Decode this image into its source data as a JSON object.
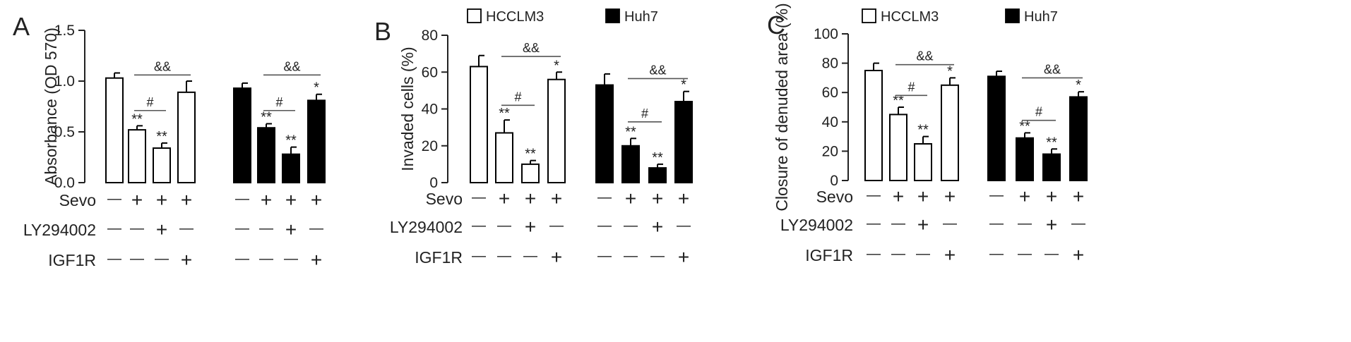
{
  "chart_data": [
    {
      "type": "bar",
      "panel_label": "A",
      "ylabel": "Absorbance (OD 570)",
      "ylim": [
        0,
        1.5
      ],
      "yticks": [
        "0.0",
        "0.5",
        "1.0",
        "1.5"
      ],
      "legend": [],
      "series": [
        {
          "name": "",
          "fill": "#ffffff",
          "values": [
            1.03,
            0.52,
            0.34,
            0.89
          ],
          "errors": [
            0.05,
            0.04,
            0.05,
            0.11
          ],
          "marks": [
            "",
            "**",
            "**",
            ""
          ]
        },
        {
          "name": "",
          "fill": "#000000",
          "values": [
            0.93,
            0.54,
            0.28,
            0.81
          ],
          "errors": [
            0.05,
            0.04,
            0.07,
            0.06
          ],
          "marks": [
            "",
            "**",
            "**",
            "*"
          ]
        }
      ],
      "brackets": [
        {
          "series": 0,
          "from": 1,
          "to": 2,
          "y": 0.71,
          "label": "#"
        },
        {
          "series": 0,
          "from": 1,
          "to": 3,
          "y": 1.06,
          "label": "&&"
        },
        {
          "series": 1,
          "from": 1,
          "to": 2,
          "y": 0.71,
          "label": "#"
        },
        {
          "series": 1,
          "from": 1,
          "to": 3,
          "y": 1.06,
          "label": "&&"
        }
      ],
      "treatments": [
        {
          "label": "Sevo",
          "signs": [
            "—",
            "+",
            "+",
            "+"
          ]
        },
        {
          "label": "LY294002",
          "signs": [
            "—",
            "—",
            "+",
            "—"
          ]
        },
        {
          "label": "IGF1R",
          "signs": [
            "—",
            "—",
            "—",
            "+"
          ]
        }
      ]
    },
    {
      "type": "bar",
      "panel_label": "B",
      "ylabel": "Invaded cells (%)",
      "ylim": [
        0,
        80
      ],
      "yticks": [
        "0",
        "20",
        "40",
        "60",
        "80"
      ],
      "legend": [
        "HCCLM3",
        "Huh7"
      ],
      "series": [
        {
          "name": "HCCLM3",
          "fill": "#ffffff",
          "values": [
            63,
            27,
            10,
            56
          ],
          "errors": [
            6,
            7,
            2,
            4
          ],
          "marks": [
            "",
            "**",
            "**",
            "*"
          ]
        },
        {
          "name": "Huh7",
          "fill": "#000000",
          "values": [
            53,
            20,
            8,
            44
          ],
          "errors": [
            6,
            4,
            2,
            5.5
          ],
          "marks": [
            "",
            "**",
            "**",
            "*"
          ]
        }
      ],
      "brackets": [
        {
          "series": 0,
          "from": 1,
          "to": 2,
          "y": 42,
          "label": "#"
        },
        {
          "series": 0,
          "from": 1,
          "to": 3,
          "y": 68.5,
          "label": "&&"
        },
        {
          "series": 1,
          "from": 1,
          "to": 2,
          "y": 33,
          "label": "#"
        },
        {
          "series": 1,
          "from": 1,
          "to": 3,
          "y": 56.5,
          "label": "&&"
        }
      ],
      "treatments": [
        {
          "label": "Sevo",
          "signs": [
            "—",
            "+",
            "+",
            "+"
          ]
        },
        {
          "label": "LY294002",
          "signs": [
            "—",
            "—",
            "+",
            "—"
          ]
        },
        {
          "label": "IGF1R",
          "signs": [
            "—",
            "—",
            "—",
            "+"
          ]
        }
      ]
    },
    {
      "type": "bar",
      "panel_label": "C",
      "ylabel": "Closure of denuded area (%)",
      "ylim": [
        0,
        100
      ],
      "yticks": [
        "0",
        "20",
        "40",
        "60",
        "80",
        "100"
      ],
      "legend": [
        "HCCLM3",
        "Huh7"
      ],
      "series": [
        {
          "name": "HCCLM3",
          "fill": "#ffffff",
          "values": [
            75,
            45,
            25,
            65
          ],
          "errors": [
            5,
            5,
            5,
            5
          ],
          "marks": [
            "",
            "**",
            "**",
            "*"
          ]
        },
        {
          "name": "Huh7",
          "fill": "#000000",
          "values": [
            71,
            29,
            18,
            57
          ],
          "errors": [
            3.5,
            3.5,
            3.5,
            3.5
          ],
          "marks": [
            "",
            "**",
            "**",
            "*"
          ]
        }
      ],
      "brackets": [
        {
          "series": 0,
          "from": 1,
          "to": 2,
          "y": 58,
          "label": "#"
        },
        {
          "series": 0,
          "from": 1,
          "to": 3,
          "y": 79,
          "label": "&&"
        },
        {
          "series": 1,
          "from": 1,
          "to": 2,
          "y": 41,
          "label": "#"
        },
        {
          "series": 1,
          "from": 1,
          "to": 3,
          "y": 70,
          "label": "&&"
        }
      ],
      "treatments": [
        {
          "label": "Sevo",
          "signs": [
            "—",
            "+",
            "+",
            "+"
          ]
        },
        {
          "label": "LY294002",
          "signs": [
            "—",
            "—",
            "+",
            "—"
          ]
        },
        {
          "label": "IGF1R",
          "signs": [
            "—",
            "—",
            "—",
            "+"
          ]
        }
      ]
    }
  ]
}
